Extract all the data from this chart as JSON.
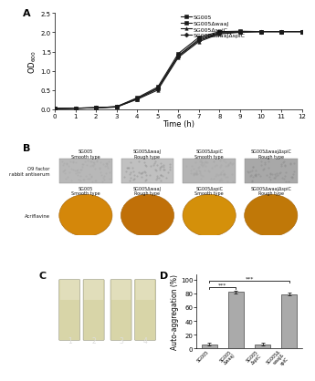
{
  "panel_A": {
    "time": [
      0,
      1,
      2,
      3,
      4,
      5,
      6,
      7,
      8,
      9,
      10,
      11,
      12
    ],
    "SG005": [
      0.02,
      0.03,
      0.04,
      0.06,
      0.27,
      0.54,
      1.4,
      1.82,
      2.0,
      2.02,
      2.02,
      2.02,
      2.02
    ],
    "SG005_waaJ": [
      0.02,
      0.03,
      0.04,
      0.07,
      0.3,
      0.58,
      1.45,
      1.87,
      2.02,
      2.03,
      2.02,
      2.02,
      2.02
    ],
    "SG005_spiC": [
      0.02,
      0.03,
      0.04,
      0.06,
      0.26,
      0.5,
      1.35,
      1.76,
      1.96,
      2.0,
      2.02,
      2.02,
      2.02
    ],
    "SG005_waaJ_spiC": [
      0.02,
      0.03,
      0.04,
      0.07,
      0.28,
      0.55,
      1.38,
      1.79,
      1.98,
      2.01,
      2.02,
      2.02,
      2.02
    ],
    "xlabel": "Time (h)",
    "ylim": [
      0.0,
      2.5
    ],
    "xlim": [
      0,
      12
    ],
    "yticks": [
      0.0,
      0.5,
      1.0,
      1.5,
      2.0,
      2.5
    ],
    "xticks": [
      0,
      1,
      2,
      3,
      4,
      5,
      6,
      7,
      8,
      9,
      10,
      11,
      12
    ],
    "legend_labels": [
      "SG005",
      "SG005ΔwaaJ",
      "SG005ΔspiC",
      "SG005ΔwaaJΔspiC"
    ]
  },
  "panel_B": {
    "col_labels_top": [
      "SG005\nSmooth type",
      "SG005ΔwaaJ\nRough type",
      "SG005ΔspiC\nSmooth type",
      "SG005ΔwaaJΔspiC\nRough type"
    ],
    "col_labels_bot": [
      "SG005\nSmooth type",
      "SG005ΔwaaJ\nRough type",
      "SG005ΔspiC\nSmooth type",
      "SG005ΔwaaJΔspiC\nRough type"
    ],
    "row_label_top": "O9 factor\nrabbit antiserum",
    "row_label_bot": "Acriflavine",
    "top_rect_color": "#b0b0b0",
    "top_rect_colors": [
      "#b8b8b8",
      "#c0c0c0",
      "#b4b4b4",
      "#a8a8a8"
    ],
    "bot_ellipse_colors": [
      "#d4870a",
      "#c07008",
      "#d4900a",
      "#c07808"
    ],
    "bg_color": "#e8e8e8"
  },
  "panel_C": {
    "tube_fill": "#cccca0",
    "bg_color": "#1c1c10",
    "labels": [
      "1",
      "2",
      "3",
      "4"
    ]
  },
  "panel_D": {
    "values": [
      6,
      82,
      6,
      79
    ],
    "errors": [
      2,
      2,
      2,
      2
    ],
    "bar_color": "#aaaaaa",
    "ylabel": "Auto-aggregation (%)",
    "ylim": [
      0,
      105
    ],
    "yticks": [
      0,
      20,
      40,
      60,
      80,
      100
    ],
    "x_labels": [
      "SG005",
      "SG005ΔwaaJ",
      "SG005ΔspiC",
      "SG005ΔwaaJΔspiC"
    ]
  },
  "figure": {
    "bg_color": "#ffffff",
    "lfs": 6,
    "tfs": 5,
    "panel_lfs": 8
  }
}
